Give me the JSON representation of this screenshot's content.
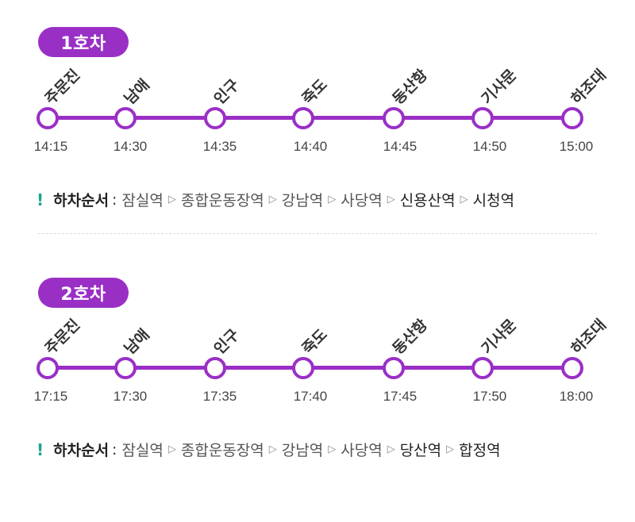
{
  "cars": [
    {
      "label": "1호차",
      "stops": [
        {
          "name": "주문진",
          "time": "14:15"
        },
        {
          "name": "남애",
          "time": "14:30"
        },
        {
          "name": "인구",
          "time": "14:35"
        },
        {
          "name": "죽도",
          "time": "14:40"
        },
        {
          "name": "동산항",
          "time": "14:45"
        },
        {
          "name": "기사문",
          "time": "14:50"
        },
        {
          "name": "하조대",
          "time": "15:00"
        }
      ],
      "dropoff": {
        "icon": "!",
        "label": "하차순서",
        "colon": ":",
        "arrow": "▷",
        "stations": [
          "잠실역",
          "종합운동장역",
          "강남역",
          "사당역",
          "신용산역",
          "시청역"
        ]
      }
    },
    {
      "label": "2호차",
      "stops": [
        {
          "name": "주문진",
          "time": "17:15"
        },
        {
          "name": "남애",
          "time": "17:30"
        },
        {
          "name": "인구",
          "time": "17:35"
        },
        {
          "name": "죽도",
          "time": "17:40"
        },
        {
          "name": "동산항",
          "time": "17:45"
        },
        {
          "name": "기사문",
          "time": "17:50"
        },
        {
          "name": "하조대",
          "time": "18:00"
        }
      ],
      "dropoff": {
        "icon": "!",
        "label": "하차순서",
        "colon": ":",
        "arrow": "▷",
        "stations": [
          "잠실역",
          "종합운동장역",
          "강남역",
          "사당역",
          "당산역",
          "합정역"
        ]
      }
    }
  ],
  "colors": {
    "accent": "#9a2fc6",
    "notice": "#1aa58f"
  }
}
